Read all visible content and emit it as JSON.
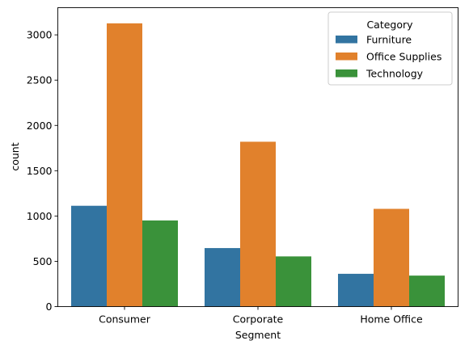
{
  "chart_data": {
    "type": "bar",
    "categories": [
      "Consumer",
      "Corporate",
      "Home Office"
    ],
    "series": [
      {
        "name": "Furniture",
        "values": [
          1113,
          646,
          362
        ],
        "color": "#3274a1"
      },
      {
        "name": "Office Supplies",
        "values": [
          3127,
          1820,
          1079
        ],
        "color": "#e1812c"
      },
      {
        "name": "Technology",
        "values": [
          951,
          554,
          342
        ],
        "color": "#3a923a"
      }
    ],
    "xlabel": "Segment",
    "ylabel": "count",
    "ylim": [
      0,
      3300
    ],
    "yticks": [
      0,
      500,
      1000,
      1500,
      2000,
      2500,
      3000
    ],
    "grid": false,
    "legend": {
      "title": "Category",
      "placement": "top-right"
    }
  }
}
